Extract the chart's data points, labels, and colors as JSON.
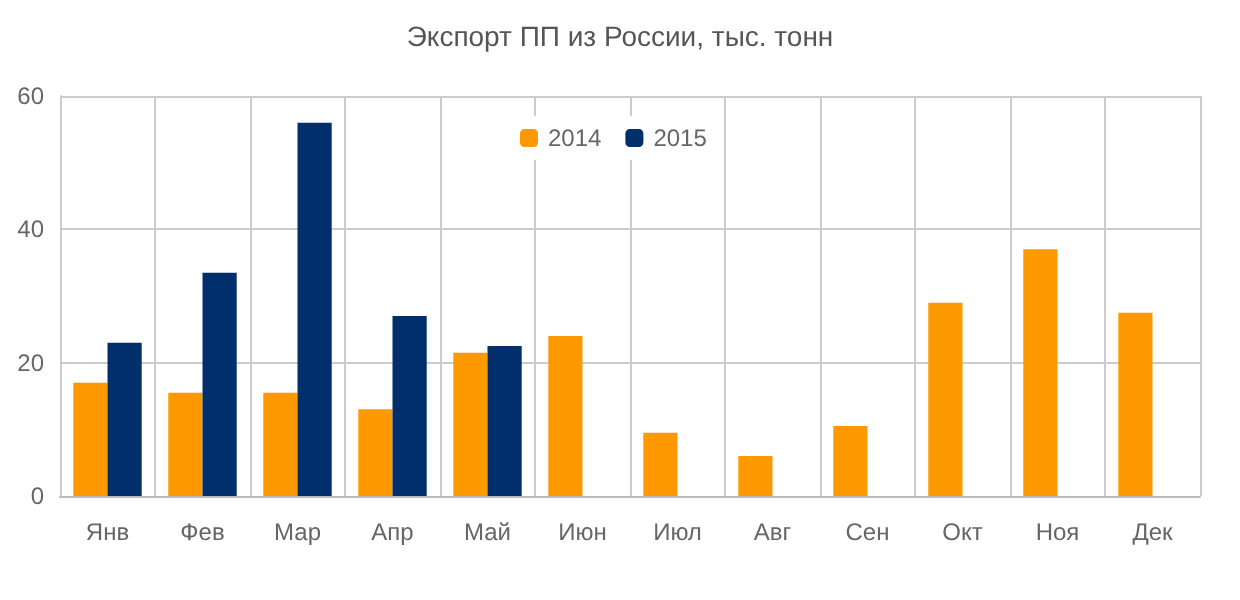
{
  "chart_data": {
    "type": "bar",
    "title": "Экспорт ПП из России, тыс. тонн",
    "categories": [
      "Янв",
      "Фев",
      "Мар",
      "Апр",
      "Май",
      "Июн",
      "Июл",
      "Авг",
      "Сен",
      "Окт",
      "Ноя",
      "Дек"
    ],
    "series": [
      {
        "name": "2014",
        "color": "#ff9900",
        "values": [
          17,
          15.5,
          15.5,
          13,
          21.5,
          24,
          9.5,
          6,
          10.5,
          29,
          37,
          27.5
        ]
      },
      {
        "name": "2015",
        "color": "#002f6c",
        "values": [
          23,
          33.5,
          56,
          27,
          22.5,
          null,
          null,
          null,
          null,
          null,
          null,
          null
        ]
      }
    ],
    "ylim": [
      0,
      60
    ],
    "yticks": [
      0,
      20,
      40,
      60
    ],
    "grid": true,
    "legend": "top"
  }
}
